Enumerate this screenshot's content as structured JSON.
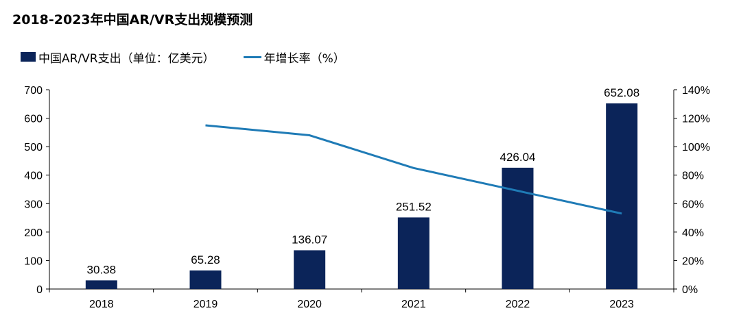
{
  "title": "2018-2023年中国AR/VR支出规模预测",
  "legend": {
    "bar_series": "中国AR/VR支出（单位：亿美元）",
    "line_series": "年增长率（%）"
  },
  "colors": {
    "bar": "#0b2459",
    "line": "#1f7bb6",
    "axis": "#000000"
  },
  "chart_data": {
    "type": "bar",
    "categories": [
      "2018",
      "2019",
      "2020",
      "2021",
      "2022",
      "2023"
    ],
    "series": [
      {
        "name": "中国AR/VR支出（单位：亿美元）",
        "type": "bar",
        "axis": "left",
        "values": [
          30.38,
          65.28,
          136.07,
          251.52,
          426.04,
          652.08
        ],
        "labels": [
          "30.38",
          "65.28",
          "136.07",
          "251.52",
          "426.04",
          "652.08"
        ]
      },
      {
        "name": "年增长率（%）",
        "type": "line",
        "axis": "right",
        "values": [
          null,
          115,
          108,
          85,
          69,
          53
        ]
      }
    ],
    "left_axis": {
      "ylim": [
        0,
        700
      ],
      "ticks": [
        "0",
        "100",
        "200",
        "300",
        "400",
        "500",
        "600",
        "700"
      ]
    },
    "right_axis": {
      "ylim": [
        0,
        140
      ],
      "ticks": [
        "0%",
        "20%",
        "40%",
        "60%",
        "80%",
        "100%",
        "120%",
        "140%"
      ]
    },
    "grid": false,
    "legend_position": "top-left"
  }
}
